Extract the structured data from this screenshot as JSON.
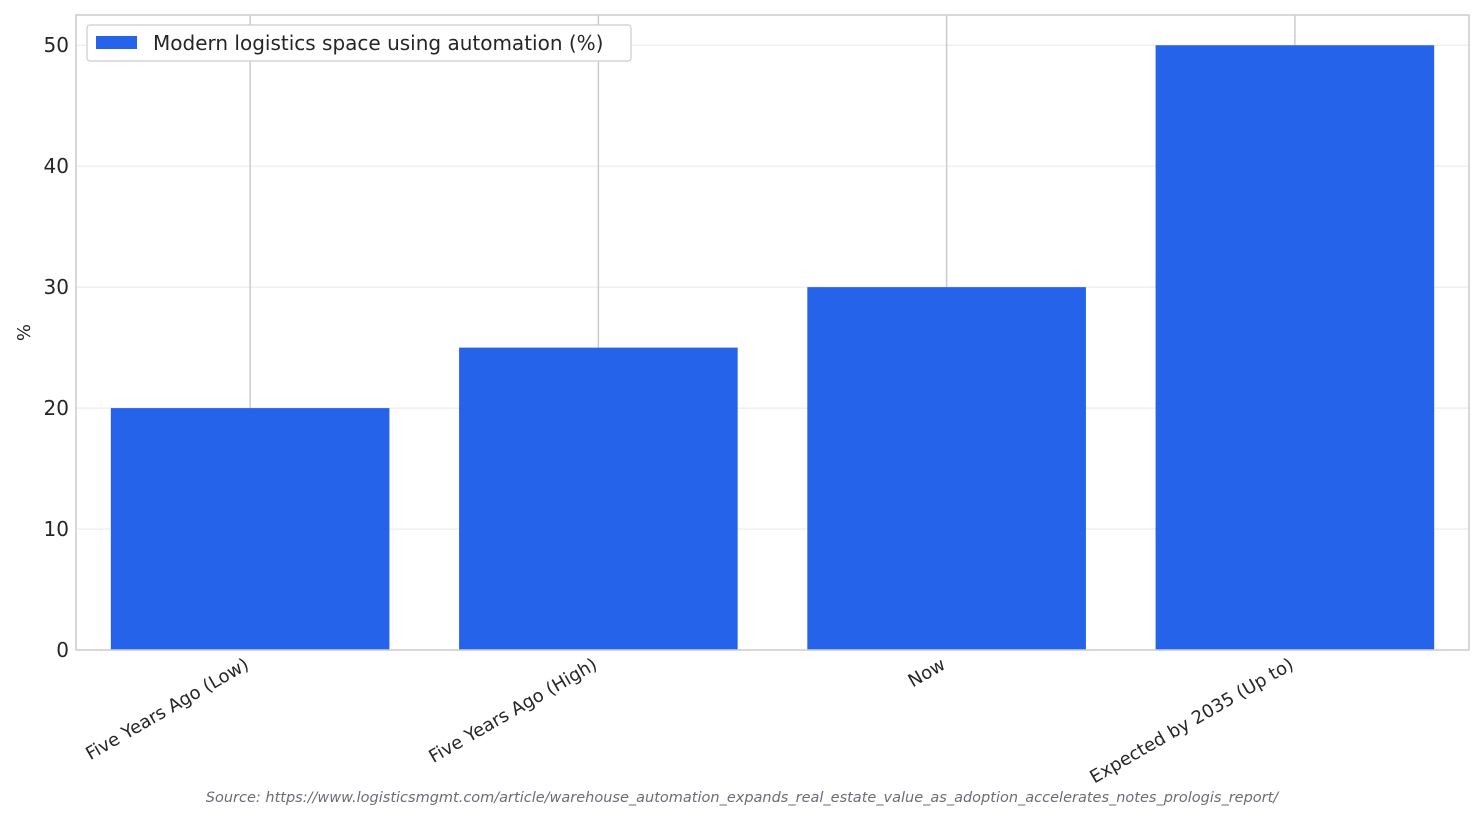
{
  "chart_data": {
    "type": "bar",
    "categories": [
      "Five Years Ago (Low)",
      "Five Years Ago (High)",
      "Now",
      "Expected by 2035 (Up to)"
    ],
    "series": [
      {
        "name": "Modern logistics space using automation (%)",
        "values": [
          20,
          25,
          30,
          50
        ],
        "color": "#2563eb"
      }
    ],
    "title": "",
    "xlabel": "",
    "ylabel": "%",
    "ylim": [
      0,
      52.5
    ],
    "yticks": [
      0,
      10,
      20,
      30,
      40,
      50
    ],
    "grid": true,
    "legend_position": "top-left"
  },
  "source": "Source: https://www.logisticsmgmt.com/article/warehouse_automation_expands_real_estate_value_as_adoption_accelerates_notes_prologis_report/"
}
